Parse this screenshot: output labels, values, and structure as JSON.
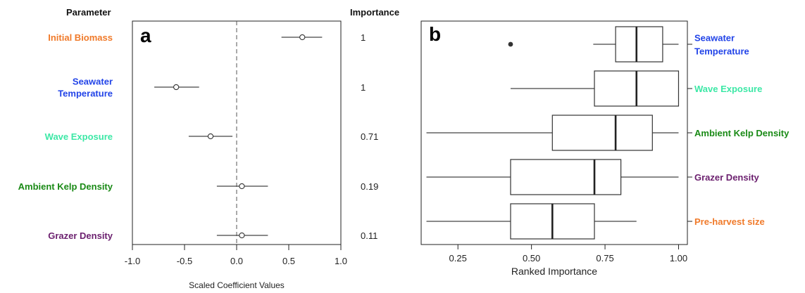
{
  "colors": {
    "orange": "#f07a2a",
    "blue": "#2244e8",
    "aqua": "#3ce8a6",
    "green": "#1a8a16",
    "purple": "#6b1f6e",
    "axis": "#222222",
    "whisker": "#444444"
  },
  "panel_a": {
    "letter": "a",
    "parameter_header": "Parameter",
    "importance_header": "Importance",
    "xlabel": "Scaled Coefficient Values",
    "ticks": [
      "-1.0",
      "-0.5",
      "0.0",
      "0.5",
      "1.0"
    ]
  },
  "panel_b": {
    "letter": "b",
    "xlabel": "Ranked Importance",
    "ticks": [
      "0.25",
      "0.50",
      "0.75",
      "1.00"
    ]
  },
  "chart_data": [
    {
      "type": "scatter",
      "panel": "a",
      "title": "",
      "xlabel": "Scaled Coefficient Values",
      "xlim": [
        -1.0,
        1.0
      ],
      "x_ticks": [
        -1.0,
        -0.5,
        0.0,
        0.5,
        1.0
      ],
      "reference_line_x": 0.0,
      "points": [
        {
          "parameter": [
            "Initial Biomass"
          ],
          "color": "orange",
          "estimate": 0.63,
          "ci": [
            0.43,
            0.82
          ],
          "importance": "1"
        },
        {
          "parameter": [
            "Seawater",
            "Temperature"
          ],
          "color": "blue",
          "estimate": -0.58,
          "ci": [
            -0.79,
            -0.36
          ],
          "importance": "1"
        },
        {
          "parameter": [
            "Wave Exposure"
          ],
          "color": "aqua",
          "estimate": -0.25,
          "ci": [
            -0.46,
            -0.04
          ],
          "importance": "0.71"
        },
        {
          "parameter": [
            "Ambient Kelp Density"
          ],
          "color": "green",
          "estimate": 0.05,
          "ci": [
            -0.19,
            0.3
          ],
          "importance": "0.19"
        },
        {
          "parameter": [
            "Grazer Density"
          ],
          "color": "purple",
          "estimate": 0.05,
          "ci": [
            -0.19,
            0.3
          ],
          "importance": "0.11"
        }
      ]
    },
    {
      "type": "boxplot",
      "panel": "b",
      "title": "",
      "xlabel": "Ranked Importance",
      "xlim": [
        0.125,
        1.03
      ],
      "x_ticks": [
        0.25,
        0.5,
        0.75,
        1.0
      ],
      "boxes": [
        {
          "label": [
            "Seawater",
            "Temperature"
          ],
          "color": "blue",
          "min": 0.71,
          "q1": 0.786,
          "median": 0.857,
          "q3": 0.946,
          "max": 1.0,
          "outliers": [
            0.429
          ]
        },
        {
          "label": [
            "Wave Exposure"
          ],
          "color": "aqua",
          "min": 0.429,
          "q1": 0.714,
          "median": 0.857,
          "q3": 1.0,
          "max": 1.0,
          "outliers": []
        },
        {
          "label": [
            "Ambient Kelp Density"
          ],
          "color": "green",
          "min": 0.143,
          "q1": 0.571,
          "median": 0.786,
          "q3": 0.911,
          "max": 1.0,
          "outliers": []
        },
        {
          "label": [
            "Grazer Density"
          ],
          "color": "purple",
          "min": 0.143,
          "q1": 0.429,
          "median": 0.714,
          "q3": 0.804,
          "max": 1.0,
          "outliers": []
        },
        {
          "label": [
            "Pre-harvest size"
          ],
          "color": "orange",
          "min": 0.143,
          "q1": 0.429,
          "median": 0.571,
          "q3": 0.714,
          "max": 0.857,
          "outliers": []
        }
      ]
    }
  ]
}
